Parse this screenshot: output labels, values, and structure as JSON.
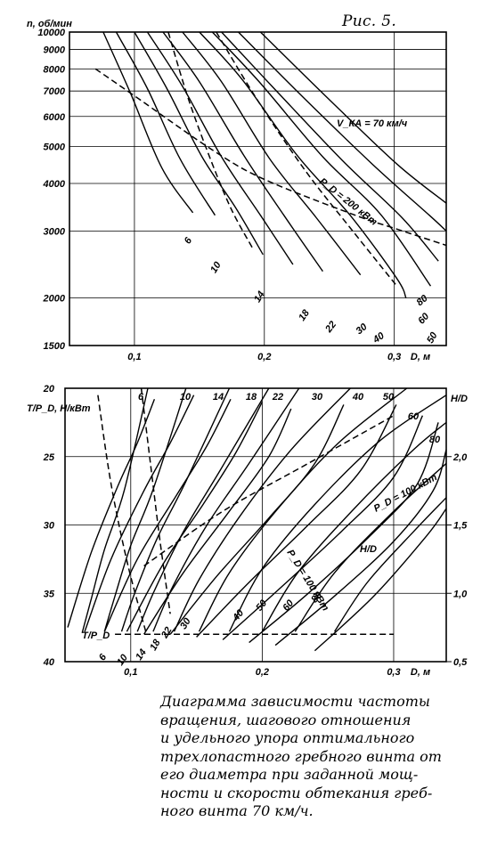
{
  "figure_label": "Рис. 5.",
  "caption_lines": [
    "Диаграмма зависимости частоты",
    "вращения, шагового отношения",
    "и удельного упора оптимального",
    "трехлопастного гребного винта от",
    "его диаметра при заданной мощ-",
    "ности и скорости обтекания греб-",
    "ного винта 70 км/ч."
  ],
  "chart_data": [
    {
      "type": "line",
      "y_label": "n, об/мин",
      "x_label": "D, м",
      "annotation": "V_КА = 70 км/ч",
      "power_label": "P_D = 200 кВт",
      "y_scale": "log",
      "xlim": [
        0.05,
        0.34
      ],
      "ylim": [
        1500,
        10000
      ],
      "grid": true,
      "x_ticks": [
        "0,1",
        "0,2",
        "0,3"
      ],
      "y_ticks": [
        "1500",
        "2000",
        "3000",
        "4000",
        "5000",
        "6000",
        "7000",
        "8000",
        "9000",
        "10000"
      ],
      "y_tick_values": [
        1500,
        2000,
        3000,
        4000,
        5000,
        6000,
        7000,
        8000,
        9000,
        10000
      ],
      "series": [
        {
          "name": "6",
          "style": "solid",
          "points": [
            [
              0.076,
              10000
            ],
            [
              0.097,
              6900
            ],
            [
              0.121,
              4400
            ],
            [
              0.145,
              3350
            ]
          ]
        },
        {
          "name": "10",
          "style": "solid",
          "points": [
            [
              0.086,
              10000
            ],
            [
              0.11,
              7100
            ],
            [
              0.135,
              4650
            ],
            [
              0.162,
              3300
            ]
          ]
        },
        {
          "name": "14",
          "style": "solid",
          "points": [
            [
              0.1,
              10000
            ],
            [
              0.125,
              7100
            ],
            [
              0.152,
              4700
            ],
            [
              0.178,
              3450
            ],
            [
              0.199,
              2600
            ]
          ]
        },
        {
          "name": "18",
          "style": "solid",
          "points": [
            [
              0.11,
              10000
            ],
            [
              0.137,
              7200
            ],
            [
              0.167,
              4700
            ],
            [
              0.197,
              3300
            ],
            [
              0.222,
              2450
            ]
          ]
        },
        {
          "name": "22",
          "style": "solid",
          "points": [
            [
              0.122,
              10000
            ],
            [
              0.15,
              7400
            ],
            [
              0.184,
              4750
            ],
            [
              0.215,
              3300
            ],
            [
              0.245,
              2350
            ]
          ]
        },
        {
          "name": "30",
          "style": "solid",
          "points": [
            [
              0.137,
              10000
            ],
            [
              0.167,
              7400
            ],
            [
              0.204,
              4650
            ],
            [
              0.24,
              3250
            ],
            [
              0.274,
              2300
            ]
          ]
        },
        {
          "name": "40",
          "style": "solid",
          "points": [
            [
              0.15,
              10000
            ],
            [
              0.183,
              7500
            ],
            [
              0.225,
              4750
            ],
            [
              0.266,
              3300
            ],
            [
              0.302,
              2250
            ],
            [
              0.309,
              2000
            ]
          ]
        },
        {
          "name": "50",
          "style": "solid",
          "points": [
            [
              0.16,
              10000
            ],
            [
              0.196,
              7400
            ],
            [
              0.245,
              4700
            ],
            [
              0.29,
              3300
            ],
            [
              0.328,
              2150
            ]
          ]
        },
        {
          "name": "60",
          "style": "solid",
          "points": [
            [
              0.167,
              10000
            ],
            [
              0.206,
              7200
            ],
            [
              0.26,
              4600
            ],
            [
              0.306,
              3250
            ],
            [
              0.334,
              2500
            ]
          ]
        },
        {
          "name": "80",
          "style": "solid",
          "points": [
            [
              0.18,
              10000
            ],
            [
              0.225,
              7000
            ],
            [
              0.283,
              4500
            ],
            [
              0.327,
              3300
            ],
            [
              0.34,
              3000
            ]
          ]
        },
        {
          "name": "P_D = 200 кВт",
          "style": "solid",
          "points": [
            [
              0.197,
              10000
            ],
            [
              0.247,
              6800
            ],
            [
              0.302,
              4500
            ],
            [
              0.34,
              3550
            ]
          ]
        },
        {
          "name": "",
          "style": "dashed",
          "points": [
            [
              0.07,
              8000
            ],
            [
              0.1,
              6800
            ],
            [
              0.16,
              4900
            ],
            [
              0.2,
              4100
            ],
            [
              0.27,
              3300
            ],
            [
              0.3,
              3050
            ],
            [
              0.34,
              2750
            ]
          ]
        },
        {
          "name": "",
          "style": "dashed",
          "points": [
            [
              0.126,
              10000
            ],
            [
              0.142,
              6600
            ],
            [
              0.16,
              4500
            ],
            [
              0.175,
              3400
            ],
            [
              0.191,
              2700
            ]
          ]
        },
        {
          "name": "",
          "style": "dashed",
          "points": [
            [
              0.163,
              10000
            ],
            [
              0.195,
              6600
            ],
            [
              0.232,
              4300
            ],
            [
              0.268,
              3000
            ],
            [
              0.302,
              2150
            ]
          ]
        }
      ]
    },
    {
      "type": "line",
      "y_label": "T/P_D, Н/кВт",
      "y2_label": "H/D",
      "x_label": "D, м",
      "power_label": "P_D = 100 кВт",
      "xlim": [
        0.05,
        0.34
      ],
      "ylim": [
        40,
        20
      ],
      "y2lim": [
        0.5,
        2.5
      ],
      "grid": true,
      "x_ticks": [
        "0,1",
        "0,2",
        "0,3"
      ],
      "y_ticks": [
        "20",
        "25",
        "30",
        "35",
        "40"
      ],
      "y_tick_values": [
        20,
        25,
        30,
        35,
        40
      ],
      "y2_ticks": [
        "2,0",
        "1,5",
        "1,0",
        "0,5"
      ],
      "y2_tick_values": [
        2.0,
        1.5,
        1.0,
        0.5
      ],
      "series_hd": [
        {
          "name": "6",
          "style": "solid",
          "points": [
            [
              0.052,
              0.75
            ],
            [
              0.07,
              1.3
            ],
            [
              0.09,
              1.78
            ],
            [
              0.105,
              2.1
            ],
            [
              0.118,
              2.42
            ]
          ]
        },
        {
          "name": "10",
          "style": "solid",
          "points": [
            [
              0.065,
              0.72
            ],
            [
              0.085,
              1.25
            ],
            [
              0.11,
              1.75
            ],
            [
              0.13,
              2.1
            ],
            [
              0.148,
              2.45
            ]
          ]
        },
        {
          "name": "14",
          "style": "solid",
          "points": [
            [
              0.08,
              0.72
            ],
            [
              0.105,
              1.25
            ],
            [
              0.135,
              1.72
            ],
            [
              0.158,
              2.08
            ],
            [
              0.176,
              2.42
            ]
          ]
        },
        {
          "name": "18",
          "style": "solid",
          "points": [
            [
              0.097,
              0.72
            ],
            [
              0.125,
              1.22
            ],
            [
              0.155,
              1.65
            ],
            [
              0.18,
              2.03
            ],
            [
              0.2,
              2.4
            ]
          ]
        },
        {
          "name": "22",
          "style": "solid",
          "points": [
            [
              0.11,
              0.7
            ],
            [
              0.14,
              1.15
            ],
            [
              0.175,
              1.6
            ],
            [
              0.205,
              2.0
            ],
            [
              0.222,
              2.35
            ]
          ]
        },
        {
          "name": "30",
          "style": "solid",
          "points": [
            [
              0.13,
              0.7
            ],
            [
              0.165,
              1.12
            ],
            [
              0.205,
              1.55
            ],
            [
              0.24,
              1.95
            ],
            [
              0.262,
              2.38
            ]
          ]
        },
        {
          "name": "40",
          "style": "solid",
          "points": [
            [
              0.15,
              0.68
            ],
            [
              0.19,
              1.08
            ],
            [
              0.235,
              1.5
            ],
            [
              0.275,
              1.9
            ],
            [
              0.302,
              2.38
            ]
          ]
        },
        {
          "name": "50",
          "style": "solid",
          "points": [
            [
              0.17,
              0.66
            ],
            [
              0.215,
              1.05
            ],
            [
              0.26,
              1.45
            ],
            [
              0.3,
              1.85
            ],
            [
              0.322,
              2.3
            ]
          ]
        },
        {
          "name": "60",
          "style": "solid",
          "points": [
            [
              0.19,
              0.64
            ],
            [
              0.235,
              1.0
            ],
            [
              0.282,
              1.42
            ],
            [
              0.318,
              1.8
            ],
            [
              0.334,
              2.25
            ]
          ]
        },
        {
          "name": "80",
          "style": "solid",
          "points": [
            [
              0.21,
              0.62
            ],
            [
              0.255,
              0.98
            ],
            [
              0.3,
              1.38
            ],
            [
              0.33,
              1.75
            ],
            [
              0.34,
              2.05
            ]
          ]
        },
        {
          "name": "P_D = 100 кВт",
          "style": "solid",
          "points": [
            [
              0.24,
              0.58
            ],
            [
              0.285,
              0.98
            ],
            [
              0.325,
              1.42
            ],
            [
              0.34,
              1.62
            ]
          ]
        }
      ],
      "series_thrust": [
        {
          "name": "6",
          "style": "solid",
          "points": [
            [
              0.063,
              37.9
            ],
            [
              0.07,
              35.4
            ],
            [
              0.08,
              31.8
            ],
            [
              0.095,
              27.5
            ],
            [
              0.113,
              20.0
            ]
          ]
        },
        {
          "name": "10",
          "style": "solid",
          "points": [
            [
              0.08,
              37.8
            ],
            [
              0.088,
              35.2
            ],
            [
              0.1,
              31.5
            ],
            [
              0.117,
              27.4
            ],
            [
              0.142,
              20.0
            ]
          ]
        },
        {
          "name": "14",
          "style": "solid",
          "points": [
            [
              0.093,
              37.8
            ],
            [
              0.103,
              35.0
            ],
            [
              0.12,
              31.0
            ],
            [
              0.142,
              26.8
            ],
            [
              0.175,
              20.0
            ]
          ]
        },
        {
          "name": "18",
          "style": "solid",
          "points": [
            [
              0.105,
              37.8
            ],
            [
              0.118,
              34.8
            ],
            [
              0.14,
              30.5
            ],
            [
              0.168,
              26.0
            ],
            [
              0.205,
              20.0
            ]
          ]
        },
        {
          "name": "22",
          "style": "solid",
          "points": [
            [
              0.117,
              37.8
            ],
            [
              0.132,
              34.5
            ],
            [
              0.158,
              30.0
            ],
            [
              0.19,
              25.5
            ],
            [
              0.228,
              20.0
            ]
          ]
        },
        {
          "name": "30",
          "style": "solid",
          "points": [
            [
              0.133,
              37.8
            ],
            [
              0.152,
              34.0
            ],
            [
              0.182,
              29.5
            ],
            [
              0.222,
              24.5
            ],
            [
              0.267,
              20.0
            ]
          ]
        },
        {
          "name": "40",
          "style": "solid",
          "points": [
            [
              0.152,
              37.8
            ],
            [
              0.175,
              33.5
            ],
            [
              0.212,
              28.8
            ],
            [
              0.258,
              24.0
            ],
            [
              0.31,
              20.0
            ]
          ]
        },
        {
          "name": "50",
          "style": "solid",
          "points": [
            [
              0.175,
              37.8
            ],
            [
              0.2,
              33.2
            ],
            [
              0.24,
              28.5
            ],
            [
              0.29,
              23.8
            ],
            [
              0.34,
              20.5
            ]
          ]
        },
        {
          "name": "60",
          "style": "solid",
          "points": [
            [
              0.2,
              37.8
            ],
            [
              0.227,
              33.5
            ],
            [
              0.27,
              28.8
            ],
            [
              0.315,
              24.5
            ],
            [
              0.34,
              22.5
            ]
          ]
        },
        {
          "name": "80",
          "style": "solid",
          "points": [
            [
              0.225,
              37.8
            ],
            [
              0.255,
              33.5
            ],
            [
              0.3,
              29.0
            ],
            [
              0.34,
              25.5
            ]
          ]
        },
        {
          "name": "P_D = 100 кВт",
          "style": "solid",
          "points": [
            [
              0.255,
              37.8
            ],
            [
              0.28,
              34.2
            ],
            [
              0.315,
              30.5
            ],
            [
              0.34,
              28.0
            ]
          ]
        }
      ],
      "series_dashed": [
        {
          "name": "",
          "style": "dashed",
          "points": [
            [
              0.075,
              20.5
            ],
            [
              0.085,
              27.0
            ],
            [
              0.098,
              33.0
            ],
            [
              0.112,
              38.0
            ]
          ]
        },
        {
          "name": "",
          "style": "dashed",
          "points": [
            [
              0.108,
              20.0
            ],
            [
              0.115,
              25.5
            ],
            [
              0.122,
              31.0
            ],
            [
              0.13,
              36.5
            ]
          ]
        },
        {
          "name": "H/D",
          "style": "dashed",
          "points": [
            [
              0.11,
              1.2
            ],
            [
              0.17,
              1.6
            ],
            [
              0.235,
              1.95
            ],
            [
              0.3,
              2.3
            ]
          ]
        },
        {
          "name": "T/P_D",
          "style": "dashed",
          "points": [
            [
              0.088,
              38.0
            ],
            [
              0.2,
              38.0
            ],
            [
              0.3,
              38.0
            ]
          ]
        }
      ]
    }
  ]
}
